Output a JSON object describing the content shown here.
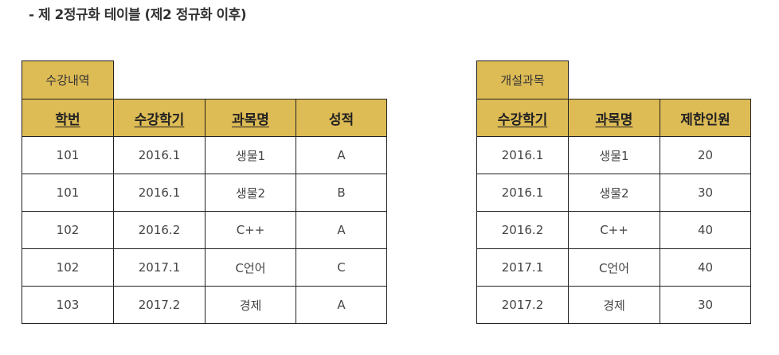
{
  "heading": "- 제 2정규화 테이블 (제2 정규화 이후)",
  "colors": {
    "header_bg": "#ddbb55",
    "border": "#222222",
    "text": "#333333"
  },
  "enrollment": {
    "caption": "수강내역",
    "columns": [
      "학번",
      "수강학기",
      "과목명",
      "성적"
    ],
    "rows": [
      [
        "101",
        "2016.1",
        "생물1",
        "A"
      ],
      [
        "101",
        "2016.1",
        "생물2",
        "B"
      ],
      [
        "102",
        "2016.2",
        "C++",
        "A"
      ],
      [
        "102",
        "2017.1",
        "C언어",
        "C"
      ],
      [
        "103",
        "2017.2",
        "경제",
        "A"
      ]
    ]
  },
  "courses": {
    "caption": "개설과목",
    "columns": [
      "수강학기",
      "과목명",
      "제한인원"
    ],
    "rows": [
      [
        "2016.1",
        "생물1",
        "20"
      ],
      [
        "2016.1",
        "생물2",
        "30"
      ],
      [
        "2016.2",
        "C++",
        "40"
      ],
      [
        "2017.1",
        "C언어",
        "40"
      ],
      [
        "2017.2",
        "경제",
        "30"
      ]
    ]
  }
}
